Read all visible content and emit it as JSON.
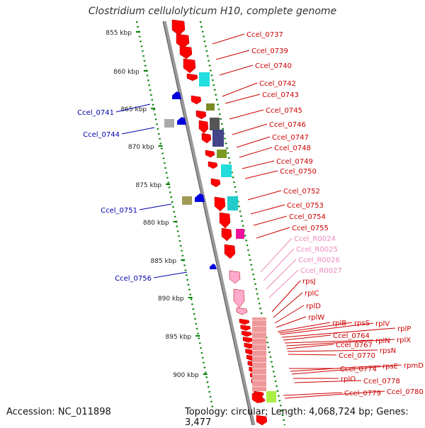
{
  "title": "Clostridium cellulolyticum H10, complete genome",
  "accession": "Accession: NC_011898",
  "topology": "Topology: circular; Length: 4,068,724 bp; Genes: 3,477",
  "colors": {
    "backbone": "#808080",
    "forward_gene": "#ff0000",
    "reverse_gene": "#0000ff",
    "rna_gene": "#ff99cc",
    "scale_dots": "#008000",
    "forward_label": "#cc0000",
    "reverse_label": "#0000aa",
    "rna_label": "#ee88bb"
  },
  "scale": {
    "ticks": [
      "855 kbp",
      "860 kbp",
      "865 kbp",
      "870 kbp",
      "875 kbp",
      "880 kbp",
      "885 kbp",
      "890 kbp",
      "895 kbp",
      "900 kbp"
    ]
  },
  "forward_labels": [
    "Ccel_0737",
    "Ccel_0739",
    "Ccel_0740",
    "Ccel_0742",
    "Ccel_0743",
    "Ccel_0745",
    "Ccel_0746",
    "Ccel_0747",
    "Ccel_0748",
    "Ccel_0749",
    "Ccel_0750",
    "Ccel_0752",
    "Ccel_0753",
    "Ccel_0754",
    "Ccel_0755"
  ],
  "rna_labels": [
    "Ccel_R0024",
    "Ccel_R0025",
    "Ccel_R0026",
    "Ccel_R0027"
  ],
  "ribosomal_labels": [
    "rpsJ",
    "rplC",
    "rplD",
    "rplW"
  ],
  "dense_labels": [
    "rplB",
    "rpsS",
    "rplV",
    "rplP",
    "Ccel_0764",
    "rplN",
    "rplX",
    "Ccel_0767",
    "rpsN",
    "Ccel_0770",
    "Ccel_0774",
    "rpsE",
    "rpmD",
    "rplO",
    "Ccel_0778",
    "Ccel_0779",
    "Ccel_0780"
  ],
  "reverse_labels": [
    "Ccel_0741",
    "Ccel_0744",
    "Ccel_0751",
    "Ccel_0756"
  ]
}
